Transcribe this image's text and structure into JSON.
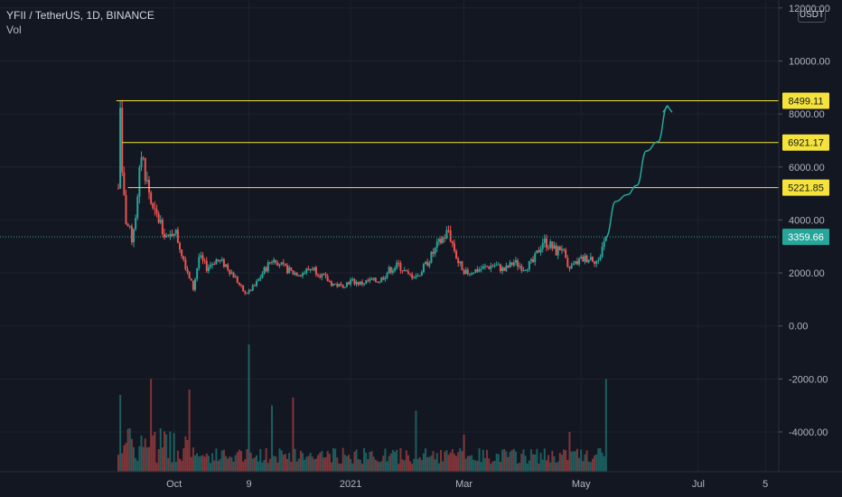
{
  "header": {
    "symbol": "YFII / TetherUS, 1D, BINANCE",
    "volume_label": "Vol",
    "currency_button": "USDT"
  },
  "colors": {
    "background": "#131722",
    "up": "#26a69a",
    "down": "#ef5350",
    "level_line": "#f5e33b",
    "projection": "#26a69a",
    "grid": "#1e222d"
  },
  "chart_data": {
    "type": "candlestick",
    "title": "YFII / TetherUS, 1D, BINANCE",
    "y_ticks": [
      "12000.00",
      "10000.00",
      "8000.00",
      "6000.00",
      "4000.00",
      "2000.00",
      "0.00",
      "-2000.00",
      "-4000.00"
    ],
    "y_tick_values": [
      12000,
      10000,
      8000,
      6000,
      4000,
      2000,
      0,
      -2000,
      -4000
    ],
    "ylim": [
      -5500,
      12300
    ],
    "x_ticks": [
      "Oct",
      "9",
      "2021",
      "Mar",
      "May",
      "Jul",
      "5"
    ],
    "x_start_date": "2020-09-02",
    "x_tick_dates": [
      "2020-10-01",
      "2020-11-09",
      "2021-01-01",
      "2021-03-01",
      "2021-05-01",
      "2021-07-01",
      "2021-08-05"
    ],
    "x_end_date": "2021-08-11",
    "last_data_date": "2021-05-14",
    "current_price": 3359.66,
    "current_price_label": "3359.66",
    "levels": [
      {
        "value": 8499.11,
        "label": "8499.11",
        "start_date": "2020-09-01"
      },
      {
        "value": 6921.17,
        "label": "6921.17",
        "start_date": "2020-09-04"
      },
      {
        "value": 5221.85,
        "label": "5221.85",
        "start_date": "2020-09-07"
      }
    ],
    "close_path": [
      [
        "2020-09-02",
        5200
      ],
      [
        "2020-09-03",
        8300
      ],
      [
        "2020-09-04",
        5500
      ],
      [
        "2020-09-06",
        4000
      ],
      [
        "2020-09-09",
        3300
      ],
      [
        "2020-09-12",
        4700
      ],
      [
        "2020-09-14",
        6600
      ],
      [
        "2020-09-17",
        5400
      ],
      [
        "2020-09-20",
        4300
      ],
      [
        "2020-09-24",
        3900
      ],
      [
        "2020-09-28",
        3200
      ],
      [
        "2020-10-01",
        3700
      ],
      [
        "2020-10-04",
        3000
      ],
      [
        "2020-10-07",
        2300
      ],
      [
        "2020-10-11",
        1400
      ],
      [
        "2020-10-14",
        2600
      ],
      [
        "2020-10-18",
        2200
      ],
      [
        "2020-10-23",
        2500
      ],
      [
        "2020-10-28",
        2300
      ],
      [
        "2020-11-02",
        1800
      ],
      [
        "2020-11-07",
        1200
      ],
      [
        "2020-11-12",
        1500
      ],
      [
        "2020-11-17",
        2100
      ],
      [
        "2020-11-22",
        2600
      ],
      [
        "2020-11-27",
        2200
      ],
      [
        "2020-12-02",
        2000
      ],
      [
        "2020-12-07",
        2000
      ],
      [
        "2020-12-12",
        2200
      ],
      [
        "2020-12-17",
        1900
      ],
      [
        "2020-12-22",
        1600
      ],
      [
        "2020-12-27",
        1500
      ],
      [
        "2021-01-01",
        1700
      ],
      [
        "2021-01-06",
        1600
      ],
      [
        "2021-01-11",
        1700
      ],
      [
        "2021-01-16",
        1700
      ],
      [
        "2021-01-21",
        2100
      ],
      [
        "2021-01-26",
        2300
      ],
      [
        "2021-01-31",
        1900
      ],
      [
        "2021-02-05",
        1900
      ],
      [
        "2021-02-10",
        2400
      ],
      [
        "2021-02-15",
        3000
      ],
      [
        "2021-02-18",
        3300
      ],
      [
        "2021-02-21",
        3600
      ],
      [
        "2021-02-23",
        3100
      ],
      [
        "2021-02-26",
        2400
      ],
      [
        "2021-03-02",
        2000
      ],
      [
        "2021-03-07",
        2100
      ],
      [
        "2021-03-12",
        2200
      ],
      [
        "2021-03-17",
        2300
      ],
      [
        "2021-03-22",
        2100
      ],
      [
        "2021-03-27",
        2400
      ],
      [
        "2021-04-01",
        2200
      ],
      [
        "2021-04-06",
        2400
      ],
      [
        "2021-04-11",
        3200
      ],
      [
        "2021-04-14",
        3100
      ],
      [
        "2021-04-18",
        2800
      ],
      [
        "2021-04-21",
        3000
      ],
      [
        "2021-04-24",
        2100
      ],
      [
        "2021-04-27",
        2300
      ],
      [
        "2021-05-01",
        2500
      ],
      [
        "2021-05-06",
        2600
      ],
      [
        "2021-05-10",
        2400
      ],
      [
        "2021-05-12",
        3000
      ],
      [
        "2021-05-14",
        3360
      ]
    ],
    "projection": [
      [
        "2021-05-14",
        3360
      ],
      [
        "2021-05-19",
        4700
      ],
      [
        "2021-05-25",
        4950
      ],
      [
        "2021-05-30",
        5300
      ],
      [
        "2021-06-04",
        6600
      ],
      [
        "2021-06-10",
        6950
      ],
      [
        "2021-06-15",
        8300
      ]
    ],
    "volume_spikes": [
      [
        "2020-09-03",
        -2600
      ],
      [
        "2020-09-19",
        -2000
      ],
      [
        "2020-10-09",
        -2400
      ],
      [
        "2020-11-09",
        -700
      ],
      [
        "2020-11-21",
        -3000
      ],
      [
        "2020-12-02",
        -2700
      ],
      [
        "2021-02-04",
        -3200
      ],
      [
        "2021-03-01",
        -4100
      ],
      [
        "2021-04-25",
        -4000
      ],
      [
        "2021-05-14",
        -2000
      ]
    ],
    "volume_base": -5500
  }
}
